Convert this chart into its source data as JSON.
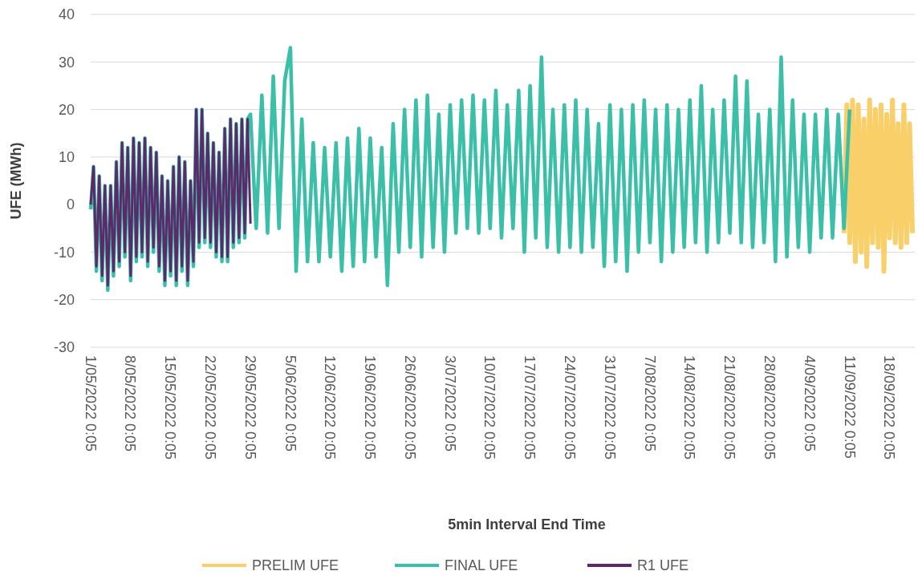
{
  "chart_data": {
    "type": "line",
    "xlabel": "5min Interval End Time",
    "ylabel": "UFE (MWh)",
    "ylim": [
      -30,
      40
    ],
    "yticks": [
      -30,
      -20,
      -10,
      0,
      10,
      20,
      30,
      40
    ],
    "xlim": [
      "2022-05-01T00:05",
      "2022-09-22T10:00"
    ],
    "xticks": [
      {
        "value": "2022-05-01T00:05",
        "label": "1/05/2022 0:05"
      },
      {
        "value": "2022-05-08T00:05",
        "label": "8/05/2022 0:05"
      },
      {
        "value": "2022-05-15T00:05",
        "label": "15/05/2022 0:05"
      },
      {
        "value": "2022-05-22T00:05",
        "label": "22/05/2022 0:05"
      },
      {
        "value": "2022-05-29T00:05",
        "label": "29/05/2022 0:05"
      },
      {
        "value": "2022-06-05T00:05",
        "label": "5/06/2022 0:05"
      },
      {
        "value": "2022-06-12T00:05",
        "label": "12/06/2022 0:05"
      },
      {
        "value": "2022-06-19T00:05",
        "label": "19/06/2022 0:05"
      },
      {
        "value": "2022-06-26T00:05",
        "label": "26/06/2022 0:05"
      },
      {
        "value": "2022-07-03T00:05",
        "label": "3/07/2022 0:05"
      },
      {
        "value": "2022-07-10T00:05",
        "label": "10/07/2022 0:05"
      },
      {
        "value": "2022-07-17T00:05",
        "label": "17/07/2022 0:05"
      },
      {
        "value": "2022-07-24T00:05",
        "label": "24/07/2022 0:05"
      },
      {
        "value": "2022-07-31T00:05",
        "label": "31/07/2022 0:05"
      },
      {
        "value": "2022-08-07T00:05",
        "label": "7/08/2022 0:05"
      },
      {
        "value": "2022-08-14T00:05",
        "label": "14/08/2022 0:05"
      },
      {
        "value": "2022-08-21T00:05",
        "label": "21/08/2022 0:05"
      },
      {
        "value": "2022-08-28T00:05",
        "label": "28/08/2022 0:05"
      },
      {
        "value": "2022-09-04T00:05",
        "label": "4/09/2022 0:05"
      },
      {
        "value": "2022-09-11T00:05",
        "label": "11/09/2022 0:05"
      },
      {
        "value": "2022-09-18T00:05",
        "label": "18/09/2022 0:05"
      }
    ],
    "grid": "y",
    "legend": "bottom",
    "line_style": "solid",
    "marker": "none",
    "series": [
      {
        "name": "PRELIM UFE",
        "color": "#f9cf6a",
        "x": [
          "2022-09-10T00:05",
          "2022-09-10T12:05",
          "2022-09-11T00:05",
          "2022-09-11T12:05",
          "2022-09-12T00:05",
          "2022-09-12T12:05",
          "2022-09-13T00:05",
          "2022-09-13T12:05",
          "2022-09-14T00:05",
          "2022-09-14T12:05",
          "2022-09-15T00:05",
          "2022-09-15T12:05",
          "2022-09-16T00:05",
          "2022-09-16T12:05",
          "2022-09-17T00:05",
          "2022-09-17T12:05",
          "2022-09-18T00:05",
          "2022-09-18T12:05",
          "2022-09-19T00:05",
          "2022-09-19T12:05",
          "2022-09-20T00:05",
          "2022-09-20T12:05",
          "2022-09-21T00:05",
          "2022-09-21T12:05",
          "2022-09-22T00:05"
        ],
        "values": [
          -6,
          21,
          -8,
          22,
          -12,
          21,
          -10,
          18,
          -13,
          22,
          -8,
          20,
          -9,
          21,
          -14,
          19,
          -7,
          22,
          -8,
          17,
          -9,
          21,
          -8,
          17,
          -6
        ]
      },
      {
        "name": "FINAL UFE",
        "color": "#3cbfa8",
        "x": [
          "2022-05-01T00:05",
          "2022-05-01T12:05",
          "2022-05-02T00:05",
          "2022-05-02T12:05",
          "2022-05-03T00:05",
          "2022-05-03T12:05",
          "2022-05-04T00:05",
          "2022-05-04T12:05",
          "2022-05-05T00:05",
          "2022-05-05T12:05",
          "2022-05-06T00:05",
          "2022-05-06T12:05",
          "2022-05-07T00:05",
          "2022-05-07T12:05",
          "2022-05-08T00:05",
          "2022-05-08T12:05",
          "2022-05-09T00:05",
          "2022-05-09T12:05",
          "2022-05-10T00:05",
          "2022-05-10T12:05",
          "2022-05-11T00:05",
          "2022-05-11T12:05",
          "2022-05-12T00:05",
          "2022-05-12T12:05",
          "2022-05-13T00:05",
          "2022-05-13T12:05",
          "2022-05-14T00:05",
          "2022-05-14T12:05",
          "2022-05-15T00:05",
          "2022-05-15T12:05",
          "2022-05-16T00:05",
          "2022-05-16T12:05",
          "2022-05-17T00:05",
          "2022-05-17T12:05",
          "2022-05-18T00:05",
          "2022-05-18T12:05",
          "2022-05-19T00:05",
          "2022-05-19T12:05",
          "2022-05-20T00:05",
          "2022-05-20T12:05",
          "2022-05-21T00:05",
          "2022-05-21T12:05",
          "2022-05-22T00:05",
          "2022-05-22T12:05",
          "2022-05-23T00:05",
          "2022-05-23T12:05",
          "2022-05-24T00:05",
          "2022-05-24T12:05",
          "2022-05-25T00:05",
          "2022-05-25T12:05",
          "2022-05-26T00:05",
          "2022-05-26T12:05",
          "2022-05-27T00:05",
          "2022-05-27T12:05",
          "2022-05-28T00:05",
          "2022-05-28T12:05",
          "2022-05-29T00:05",
          "2022-05-30T00:05",
          "2022-05-31T00:05",
          "2022-06-01T00:05",
          "2022-06-02T00:05",
          "2022-06-03T00:05",
          "2022-06-04T00:05",
          "2022-06-05T00:05",
          "2022-06-06T00:05",
          "2022-06-07T00:05",
          "2022-06-08T00:05",
          "2022-06-09T00:05",
          "2022-06-10T00:05",
          "2022-06-11T00:05",
          "2022-06-12T00:05",
          "2022-06-13T00:05",
          "2022-06-14T00:05",
          "2022-06-15T00:05",
          "2022-06-16T00:05",
          "2022-06-17T00:05",
          "2022-06-18T00:05",
          "2022-06-19T00:05",
          "2022-06-20T00:05",
          "2022-06-21T00:05",
          "2022-06-22T00:05",
          "2022-06-23T00:05",
          "2022-06-24T00:05",
          "2022-06-25T00:05",
          "2022-06-26T00:05",
          "2022-06-27T00:05",
          "2022-06-28T00:05",
          "2022-06-29T00:05",
          "2022-06-30T00:05",
          "2022-07-01T00:05",
          "2022-07-02T00:05",
          "2022-07-03T00:05",
          "2022-07-04T00:05",
          "2022-07-05T00:05",
          "2022-07-06T00:05",
          "2022-07-07T00:05",
          "2022-07-08T00:05",
          "2022-07-09T00:05",
          "2022-07-10T00:05",
          "2022-07-11T00:05",
          "2022-07-12T00:05",
          "2022-07-13T00:05",
          "2022-07-14T00:05",
          "2022-07-15T00:05",
          "2022-07-16T00:05",
          "2022-07-17T00:05",
          "2022-07-18T00:05",
          "2022-07-19T00:05",
          "2022-07-20T00:05",
          "2022-07-21T00:05",
          "2022-07-22T00:05",
          "2022-07-23T00:05",
          "2022-07-24T00:05",
          "2022-07-25T00:05",
          "2022-07-26T00:05",
          "2022-07-27T00:05",
          "2022-07-28T00:05",
          "2022-07-29T00:05",
          "2022-07-30T00:05",
          "2022-07-31T00:05",
          "2022-08-01T00:05",
          "2022-08-02T00:05",
          "2022-08-03T00:05",
          "2022-08-04T00:05",
          "2022-08-05T00:05",
          "2022-08-06T00:05",
          "2022-08-07T00:05",
          "2022-08-08T00:05",
          "2022-08-09T00:05",
          "2022-08-10T00:05",
          "2022-08-11T00:05",
          "2022-08-12T00:05",
          "2022-08-13T00:05",
          "2022-08-14T00:05",
          "2022-08-15T00:05",
          "2022-08-16T00:05",
          "2022-08-17T00:05",
          "2022-08-18T00:05",
          "2022-08-19T00:05",
          "2022-08-20T00:05",
          "2022-08-21T00:05",
          "2022-08-22T00:05",
          "2022-08-23T00:05",
          "2022-08-24T00:05",
          "2022-08-25T00:05",
          "2022-08-26T00:05",
          "2022-08-27T00:05",
          "2022-08-28T00:05",
          "2022-08-29T00:05",
          "2022-08-30T00:05",
          "2022-08-31T00:05",
          "2022-09-01T00:05",
          "2022-09-02T00:05",
          "2022-09-03T00:05",
          "2022-09-04T00:05",
          "2022-09-05T00:05",
          "2022-09-06T00:05",
          "2022-09-07T00:05",
          "2022-09-08T00:05",
          "2022-09-09T00:05",
          "2022-09-10T00:05",
          "2022-09-11T00:05"
        ],
        "values": [
          -1,
          8,
          -14,
          6,
          -16,
          4,
          -18,
          4,
          -15,
          9,
          -13,
          13,
          -11,
          12,
          -16,
          14,
          -12,
          13,
          -11,
          14,
          -13,
          12,
          -10,
          11,
          -14,
          6,
          -17,
          5,
          -15,
          8,
          -17,
          10,
          -14,
          9,
          -17,
          5,
          -13,
          20,
          -9,
          20,
          -8,
          15,
          -9,
          13,
          -11,
          11,
          -12,
          16,
          -12,
          18,
          -9,
          17,
          -8,
          18,
          -7,
          18,
          19,
          -5,
          23,
          -6,
          27,
          -5,
          26,
          33,
          -14,
          18,
          -12,
          13,
          -12,
          12,
          -11,
          13,
          -14,
          14,
          -13,
          16,
          -12,
          14,
          -11,
          12,
          -17,
          17,
          -10,
          20,
          -9,
          22,
          -11,
          23,
          -9,
          19,
          -10,
          21,
          -6,
          22,
          -5,
          23,
          -6,
          22,
          -5,
          24,
          -7,
          21,
          -5,
          24,
          -10,
          25,
          -7,
          31,
          -9,
          20,
          -10,
          21,
          -9,
          22,
          -10,
          20,
          -9,
          17,
          -13,
          21,
          -12,
          20,
          -14,
          21,
          -10,
          22,
          -8,
          20,
          -12,
          21,
          -10,
          20,
          -9,
          22,
          -8,
          25,
          -10,
          20,
          -8,
          22,
          -6,
          27,
          -8,
          26,
          -9,
          19,
          -8,
          20,
          -12,
          31,
          -11,
          22,
          -9,
          19,
          -10,
          19,
          -7,
          20,
          -7,
          19,
          -5,
          20
        ]
      },
      {
        "name": "R1 UFE",
        "color": "#5c2a6b",
        "x": [
          "2022-05-01T00:05",
          "2022-05-01T12:05",
          "2022-05-02T00:05",
          "2022-05-02T12:05",
          "2022-05-03T00:05",
          "2022-05-03T12:05",
          "2022-05-04T00:05",
          "2022-05-04T12:05",
          "2022-05-05T00:05",
          "2022-05-05T12:05",
          "2022-05-06T00:05",
          "2022-05-06T12:05",
          "2022-05-07T00:05",
          "2022-05-07T12:05",
          "2022-05-08T00:05",
          "2022-05-08T12:05",
          "2022-05-09T00:05",
          "2022-05-09T12:05",
          "2022-05-10T00:05",
          "2022-05-10T12:05",
          "2022-05-11T00:05",
          "2022-05-11T12:05",
          "2022-05-12T00:05",
          "2022-05-12T12:05",
          "2022-05-13T00:05",
          "2022-05-13T12:05",
          "2022-05-14T00:05",
          "2022-05-14T12:05",
          "2022-05-15T00:05",
          "2022-05-15T12:05",
          "2022-05-16T00:05",
          "2022-05-16T12:05",
          "2022-05-17T00:05",
          "2022-05-17T12:05",
          "2022-05-18T00:05",
          "2022-05-18T12:05",
          "2022-05-19T00:05",
          "2022-05-19T12:05",
          "2022-05-20T00:05",
          "2022-05-20T12:05",
          "2022-05-21T00:05",
          "2022-05-21T12:05",
          "2022-05-22T00:05",
          "2022-05-22T12:05",
          "2022-05-23T00:05",
          "2022-05-23T12:05",
          "2022-05-24T00:05",
          "2022-05-24T12:05",
          "2022-05-25T00:05",
          "2022-05-25T12:05",
          "2022-05-26T00:05",
          "2022-05-26T12:05",
          "2022-05-27T00:05",
          "2022-05-27T12:05",
          "2022-05-28T00:05",
          "2022-05-28T12:05",
          "2022-05-29T00:05"
        ],
        "values": [
          0,
          8,
          -13,
          6,
          -15,
          4,
          -17,
          4,
          -14,
          9,
          -12,
          13,
          -10,
          12,
          -15,
          14,
          -11,
          13,
          -10,
          14,
          -12,
          12,
          -9,
          11,
          -13,
          6,
          -16,
          5,
          -14,
          8,
          -16,
          10,
          -13,
          9,
          -16,
          5,
          -12,
          20,
          -8,
          20,
          -7,
          15,
          -8,
          13,
          -10,
          11,
          -11,
          16,
          -11,
          18,
          -8,
          17,
          -7,
          18,
          -6,
          18,
          -4
        ]
      }
    ]
  }
}
